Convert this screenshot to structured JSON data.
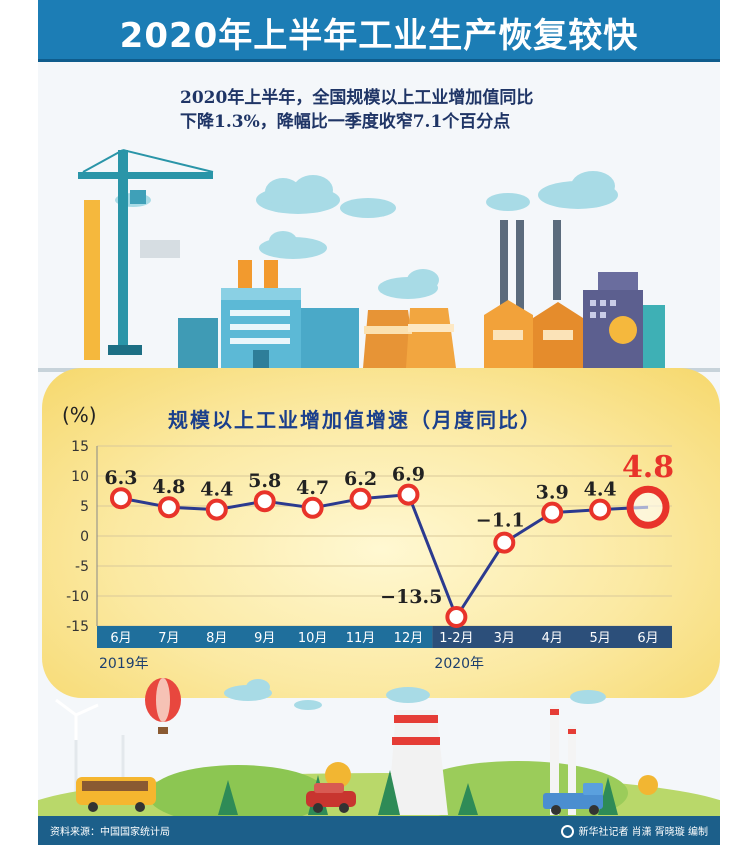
{
  "header": {
    "title": "2020年上半年工业生产恢复较快"
  },
  "subtitle": {
    "line1": "2020年上半年，全国规模以上工业增加值同比",
    "line2": "下降1.3%，降幅比一季度收窄7.1个百分点"
  },
  "chart_data": {
    "type": "line",
    "title": "规模以上工业增加值增速（月度同比）",
    "unit": "(%)",
    "categories": [
      "6月",
      "7月",
      "8月",
      "9月",
      "10月",
      "11月",
      "12月",
      "1-2月",
      "3月",
      "4月",
      "5月",
      "6月"
    ],
    "values": [
      6.3,
      4.8,
      4.4,
      5.8,
      4.7,
      6.2,
      6.9,
      -13.5,
      -1.1,
      3.9,
      4.4,
      4.8
    ],
    "value_labels": [
      "6.3",
      "4.8",
      "4.4",
      "5.8",
      "4.7",
      "6.2",
      "6.9",
      "−13.5",
      "−1.1",
      "3.9",
      "4.4",
      "4.8"
    ],
    "ylim": [
      -15,
      15
    ],
    "yticks": [
      "15",
      "10",
      "5",
      "0",
      "-5",
      "-10",
      "-15"
    ],
    "year_groups": [
      "2019年",
      "2020年"
    ],
    "grid": true,
    "colors": {
      "line": "#2b3a8f",
      "marker": "#e8332a",
      "highlight_label": "#e8332a",
      "label": "#222222",
      "axis_2019": "#1f6f9c",
      "axis_2020": "#2c4f7a"
    }
  },
  "footer": {
    "source": "资料来源：中国国家统计局",
    "credit": "新华社记者 肖潇 胥晓璇 编制"
  }
}
